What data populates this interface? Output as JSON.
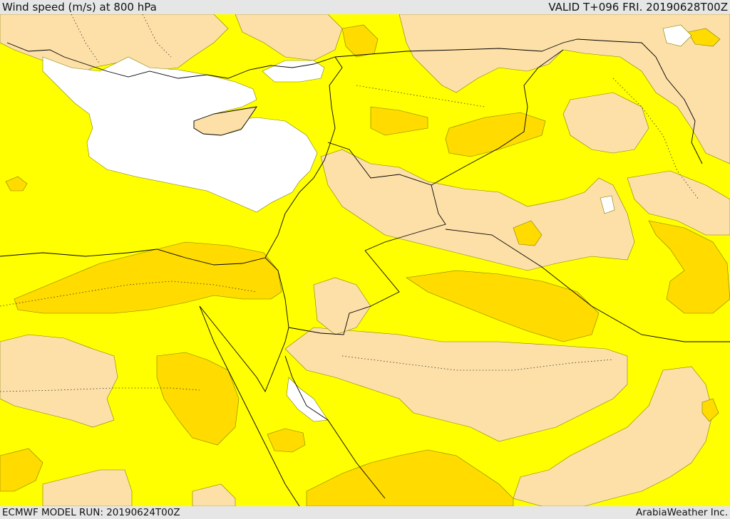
{
  "header": {
    "title": "Wind speed (m/s) at 800 hPa",
    "valid": "VALID T+096 FRI. 20190628T00Z"
  },
  "footer": {
    "model_run": "ECMWF MODEL RUN: 20190624T00Z",
    "credit": "ArabiaWeather Inc."
  },
  "colors": {
    "band_low": "#ffffff",
    "band_mid": "#ffff00",
    "band_high": "#fde0a8",
    "band_max": "#ffdb00",
    "contour": "#808000",
    "border": "#000000",
    "background": "#e6e6e6"
  }
}
